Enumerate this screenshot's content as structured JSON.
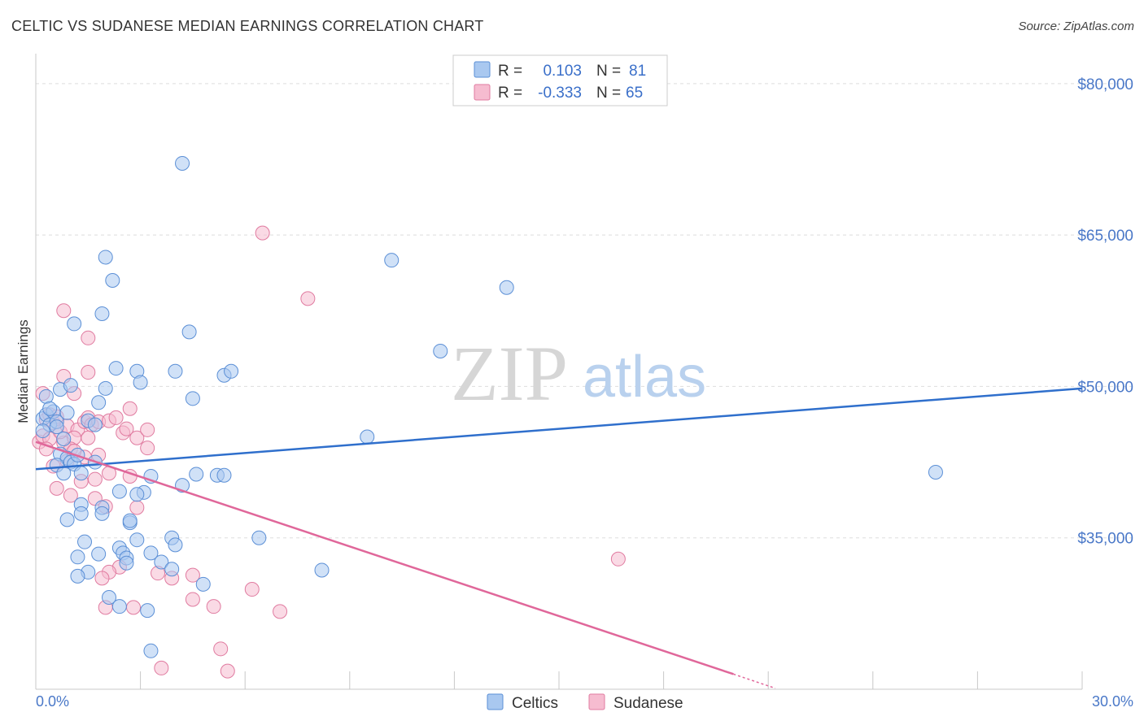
{
  "title": "CELTIC VS SUDANESE MEDIAN EARNINGS CORRELATION CHART",
  "source": "Source: ZipAtlas.com",
  "watermark": {
    "zip": "ZIP",
    "atlas": "atlas"
  },
  "legend": {
    "rows": [
      {
        "r_label": "R =",
        "r_value": "0.103",
        "n_label": "N =",
        "n_value": "81"
      },
      {
        "r_label": "R =",
        "r_value": "-0.333",
        "n_label": "N =",
        "n_value": "65"
      }
    ]
  },
  "bottom_legend": [
    "Celtics",
    "Sudanese"
  ],
  "colors": {
    "celtics_fill": "#a9c8f0",
    "celtics_stroke": "#5b8fd6",
    "celtics_line": "#2f6fcc",
    "sudanese_fill": "#f6bcd0",
    "sudanese_stroke": "#e07ba0",
    "sudanese_line": "#e0679a",
    "tick_text": "#4a78c8",
    "grid": "#dddddd"
  },
  "chart_data": {
    "type": "scatter",
    "title": "CELTIC VS SUDANESE MEDIAN EARNINGS CORRELATION CHART",
    "xlabel": "",
    "ylabel": "Median Earnings",
    "xlim": [
      0,
      30
    ],
    "ylim": [
      20000,
      82000
    ],
    "x_tick_labels": [
      "0.0%",
      "30.0%"
    ],
    "y_ticks": [
      35000,
      50000,
      65000,
      80000
    ],
    "y_tick_labels": [
      "$35,000",
      "$50,000",
      "$65,000",
      "$80,000"
    ],
    "grid": true,
    "legend_position": "top-center",
    "series": [
      {
        "name": "Celtics",
        "trend": {
          "x": [
            0,
            30
          ],
          "y": [
            41800,
            49800
          ]
        },
        "points": [
          [
            0.2,
            46800
          ],
          [
            0.3,
            47200
          ],
          [
            0.4,
            46200
          ],
          [
            0.5,
            47500
          ],
          [
            0.6,
            46500
          ],
          [
            0.2,
            45600
          ],
          [
            0.3,
            49000
          ],
          [
            0.4,
            47800
          ],
          [
            0.6,
            46000
          ],
          [
            0.8,
            44800
          ],
          [
            0.7,
            43300
          ],
          [
            0.9,
            42900
          ],
          [
            0.6,
            42200
          ],
          [
            1.0,
            42500
          ],
          [
            0.8,
            41400
          ],
          [
            1.1,
            42300
          ],
          [
            1.3,
            41400
          ],
          [
            1.2,
            43200
          ],
          [
            1.7,
            42500
          ],
          [
            1.8,
            48400
          ],
          [
            0.7,
            49700
          ],
          [
            1.0,
            50100
          ],
          [
            1.5,
            46600
          ],
          [
            1.7,
            46200
          ],
          [
            0.9,
            47400
          ],
          [
            1.1,
            56200
          ],
          [
            1.9,
            57200
          ],
          [
            2.0,
            62800
          ],
          [
            2.2,
            60500
          ],
          [
            2.3,
            51800
          ],
          [
            2.0,
            49800
          ],
          [
            2.9,
            51500
          ],
          [
            3.0,
            50400
          ],
          [
            3.3,
            41100
          ],
          [
            4.0,
            51500
          ],
          [
            4.4,
            55400
          ],
          [
            4.5,
            48800
          ],
          [
            4.6,
            41300
          ],
          [
            5.2,
            41200
          ],
          [
            5.4,
            41200
          ],
          [
            5.4,
            51100
          ],
          [
            5.6,
            51500
          ],
          [
            4.2,
            40200
          ],
          [
            4.2,
            72100
          ],
          [
            3.1,
            39500
          ],
          [
            2.9,
            39300
          ],
          [
            2.4,
            39600
          ],
          [
            1.9,
            38000
          ],
          [
            1.3,
            38300
          ],
          [
            1.9,
            37400
          ],
          [
            1.3,
            37400
          ],
          [
            0.9,
            36800
          ],
          [
            2.7,
            36500
          ],
          [
            2.7,
            36700
          ],
          [
            2.9,
            34800
          ],
          [
            3.9,
            35000
          ],
          [
            4.0,
            34300
          ],
          [
            1.4,
            34600
          ],
          [
            2.4,
            34000
          ],
          [
            2.5,
            33500
          ],
          [
            3.3,
            33500
          ],
          [
            1.8,
            33400
          ],
          [
            1.2,
            33100
          ],
          [
            2.6,
            33000
          ],
          [
            2.6,
            32500
          ],
          [
            3.6,
            32600
          ],
          [
            3.9,
            31900
          ],
          [
            1.5,
            31600
          ],
          [
            1.2,
            31200
          ],
          [
            4.8,
            30400
          ],
          [
            2.1,
            29100
          ],
          [
            2.4,
            28200
          ],
          [
            3.2,
            27800
          ],
          [
            3.3,
            23800
          ],
          [
            6.4,
            35000
          ],
          [
            8.2,
            31800
          ],
          [
            9.5,
            45000
          ],
          [
            10.2,
            62500
          ],
          [
            11.6,
            53500
          ],
          [
            13.5,
            59800
          ],
          [
            25.8,
            41500
          ]
        ]
      },
      {
        "name": "Sudanese",
        "trend": {
          "x": [
            0,
            20
          ],
          "y": [
            44500,
            21500
          ]
        },
        "trend_dashed": {
          "x": [
            20,
            21.2
          ],
          "y": [
            21500,
            20100
          ]
        },
        "points": [
          [
            0.1,
            44500
          ],
          [
            0.2,
            45100
          ],
          [
            0.3,
            46700
          ],
          [
            0.4,
            47200
          ],
          [
            0.5,
            46400
          ],
          [
            0.2,
            49300
          ],
          [
            0.6,
            47000
          ],
          [
            0.4,
            44800
          ],
          [
            0.8,
            44400
          ],
          [
            0.7,
            45500
          ],
          [
            0.9,
            46100
          ],
          [
            1.2,
            45700
          ],
          [
            1.4,
            46500
          ],
          [
            1.5,
            46900
          ],
          [
            1.1,
            44900
          ],
          [
            1.5,
            44900
          ],
          [
            1.6,
            46200
          ],
          [
            1.8,
            46500
          ],
          [
            2.1,
            46600
          ],
          [
            2.3,
            46900
          ],
          [
            2.5,
            45400
          ],
          [
            2.6,
            45800
          ],
          [
            2.9,
            44900
          ],
          [
            3.2,
            45700
          ],
          [
            3.2,
            43900
          ],
          [
            2.7,
            47800
          ],
          [
            0.8,
            51000
          ],
          [
            1.1,
            49300
          ],
          [
            1.5,
            51400
          ],
          [
            1.5,
            54800
          ],
          [
            0.8,
            57500
          ],
          [
            0.5,
            42100
          ],
          [
            1.0,
            43800
          ],
          [
            1.4,
            43000
          ],
          [
            1.8,
            43200
          ],
          [
            2.1,
            41400
          ],
          [
            2.7,
            41100
          ],
          [
            1.3,
            40600
          ],
          [
            1.7,
            40800
          ],
          [
            0.6,
            39900
          ],
          [
            1.0,
            39200
          ],
          [
            1.7,
            38900
          ],
          [
            2.0,
            38100
          ],
          [
            2.9,
            38000
          ],
          [
            2.4,
            32100
          ],
          [
            2.1,
            31600
          ],
          [
            1.9,
            31000
          ],
          [
            2.0,
            28100
          ],
          [
            2.8,
            28100
          ],
          [
            3.5,
            31500
          ],
          [
            3.9,
            31000
          ],
          [
            4.5,
            31300
          ],
          [
            4.5,
            28900
          ],
          [
            5.1,
            28200
          ],
          [
            6.2,
            29900
          ],
          [
            7.0,
            27700
          ],
          [
            5.3,
            24000
          ],
          [
            3.6,
            22100
          ],
          [
            5.5,
            21800
          ],
          [
            6.5,
            65200
          ],
          [
            7.8,
            58700
          ],
          [
            16.7,
            32900
          ],
          [
            1.1,
            43600
          ],
          [
            0.3,
            43800
          ],
          [
            0.9,
            42600
          ]
        ]
      }
    ]
  }
}
